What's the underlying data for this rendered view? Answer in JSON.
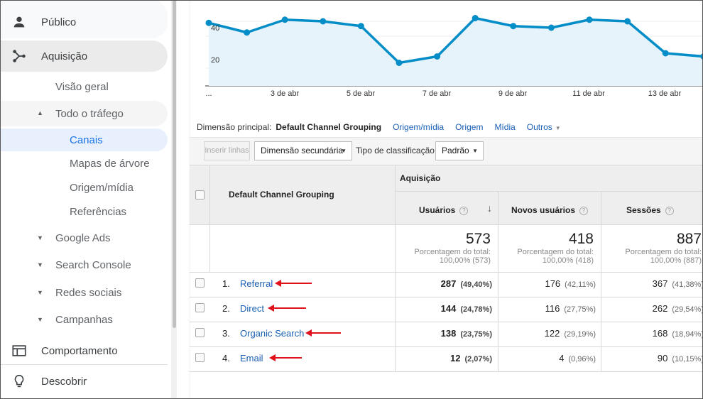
{
  "sidebar": {
    "items": [
      {
        "label": "Público",
        "icon": "person-icon"
      },
      {
        "label": "Aquisição",
        "icon": "acquisition-icon"
      },
      {
        "label": "Visão geral"
      },
      {
        "label": "Todo o tráfego"
      },
      {
        "label": "Canais"
      },
      {
        "label": "Mapas de árvore"
      },
      {
        "label": "Origem/mídia"
      },
      {
        "label": "Referências"
      },
      {
        "label": "Google Ads"
      },
      {
        "label": "Search Console"
      },
      {
        "label": "Redes sociais"
      },
      {
        "label": "Campanhas"
      },
      {
        "label": "Comportamento",
        "icon": "behavior-icon"
      },
      {
        "label": "Descobrir",
        "icon": "lightbulb-icon"
      }
    ]
  },
  "chart_data": {
    "type": "area",
    "y_ticks": [
      "40",
      "20"
    ],
    "x_ticks": [
      "...",
      "3 de abr",
      "5 de abr",
      "7 de abr",
      "9 de abr",
      "11 de abr",
      "13 de abr"
    ],
    "values": [
      43,
      37,
      45,
      44,
      41,
      18,
      22,
      46,
      41,
      40,
      45,
      44,
      24,
      22
    ],
    "ylim": [
      0,
      55
    ],
    "color": "#058dc7",
    "fill": "#e6f3fa"
  },
  "dimension": {
    "label": "Dimensão principal:",
    "current": "Default Channel Grouping",
    "links": [
      "Origem/mídia",
      "Origem",
      "Mídia",
      "Outros"
    ]
  },
  "toolbar": {
    "insert_rows": "Inserir linhas",
    "secondary_dim": "Dimensão secundária",
    "sort_label": "Tipo de classificação:",
    "sort_value": "Padrão"
  },
  "table": {
    "dim_header": "Default Channel Grouping",
    "group_header": "Aquisição",
    "columns": [
      "Usuários",
      "Novos usuários",
      "Sessões"
    ],
    "totals": [
      {
        "value": "573",
        "line1": "Porcentagem do total:",
        "line2": "100,00% (573)"
      },
      {
        "value": "418",
        "line1": "Porcentagem do total:",
        "line2": "100,00% (418)"
      },
      {
        "value": "887",
        "line1": "Porcentagem do total:",
        "line2": "100,00% (887)"
      }
    ],
    "rows": [
      {
        "num": "1.",
        "name": "Referral",
        "users": "287",
        "users_pct": "(49,40%)",
        "new": "176",
        "new_pct": "(42,11%)",
        "sessions": "367",
        "sessions_pct": "(41,38%)"
      },
      {
        "num": "2.",
        "name": "Direct",
        "users": "144",
        "users_pct": "(24,78%)",
        "new": "116",
        "new_pct": "(27,75%)",
        "sessions": "262",
        "sessions_pct": "(29,54%)"
      },
      {
        "num": "3.",
        "name": "Organic Search",
        "users": "138",
        "users_pct": "(23,75%)",
        "new": "122",
        "new_pct": "(29,19%)",
        "sessions": "168",
        "sessions_pct": "(18,94%)"
      },
      {
        "num": "4.",
        "name": "Email",
        "users": "12",
        "users_pct": "(2,07%)",
        "new": "4",
        "new_pct": "(0,96%)",
        "sessions": "90",
        "sessions_pct": "(10,15%)"
      }
    ]
  },
  "annotation_color": "#e0111b"
}
